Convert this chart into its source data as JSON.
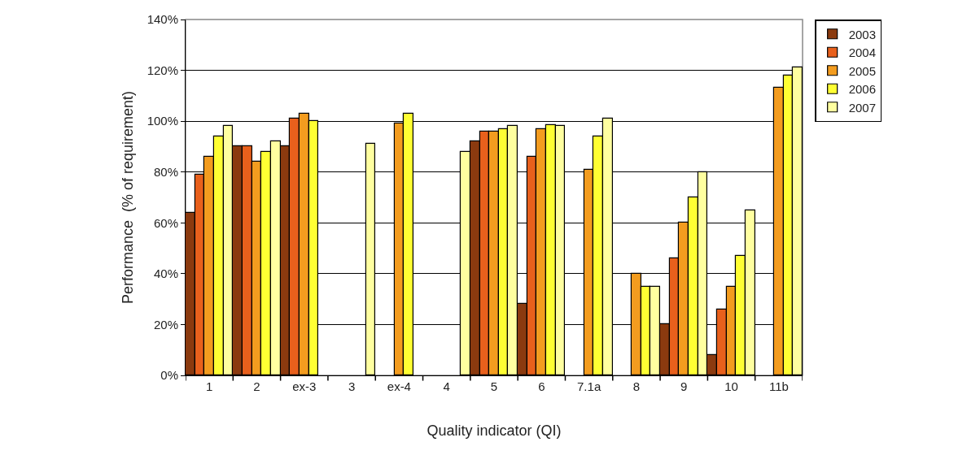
{
  "chart_data": {
    "type": "bar",
    "xlabel": "Quality indicator (QI)",
    "ylabel": "Performance  (% of requirement)",
    "categories": [
      "1",
      "2",
      "ex-3",
      "3",
      "ex-4",
      "4",
      "5",
      "6",
      "7.1a",
      "8",
      "9",
      "10",
      "11b"
    ],
    "series": [
      {
        "name": "2003",
        "color": "#8b3a0f",
        "values": [
          64,
          90,
          90,
          null,
          null,
          null,
          92,
          28,
          null,
          null,
          20,
          8,
          null
        ]
      },
      {
        "name": "2004",
        "color": "#e8601c",
        "values": [
          79,
          90,
          101,
          null,
          null,
          null,
          96,
          86,
          null,
          null,
          46,
          26,
          null
        ]
      },
      {
        "name": "2005",
        "color": "#f39c1f",
        "values": [
          86,
          84,
          103,
          null,
          99,
          null,
          96,
          97,
          81,
          40,
          60,
          35,
          113
        ]
      },
      {
        "name": "2006",
        "color": "#ffff33",
        "values": [
          94,
          88,
          100,
          null,
          103,
          null,
          97,
          98.5,
          94,
          35,
          70,
          47,
          118
        ]
      },
      {
        "name": "2007",
        "color": "#ffffa0",
        "values": [
          98,
          92,
          null,
          91,
          null,
          88,
          98,
          98,
          101,
          35,
          80,
          65,
          121
        ]
      }
    ],
    "ylim": [
      0,
      140
    ],
    "yticks": [
      {
        "value": 0,
        "label": "0%"
      },
      {
        "value": 20,
        "label": "20%"
      },
      {
        "value": 40,
        "label": "40%"
      },
      {
        "value": 60,
        "label": "60%"
      },
      {
        "value": 80,
        "label": "80%"
      },
      {
        "value": 100,
        "label": "100%"
      },
      {
        "value": 120,
        "label": "120%"
      },
      {
        "value": 140,
        "label": "140%"
      }
    ],
    "grid": "y",
    "legend": "top right"
  }
}
